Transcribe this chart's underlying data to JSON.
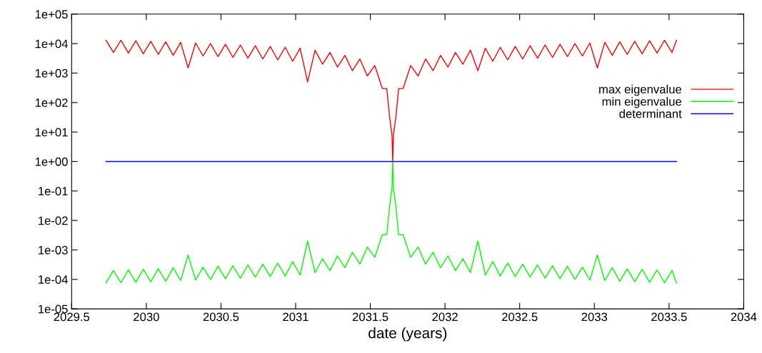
{
  "chart_data": {
    "type": "line",
    "xlabel": "date (years)",
    "xlim": [
      2029.5,
      2034
    ],
    "xticks": [
      2029.5,
      2030,
      2030.5,
      2031,
      2031.5,
      2032,
      2032.5,
      2033,
      2033.5,
      2034
    ],
    "ylim": [
      1e-05,
      100000
    ],
    "log": "y",
    "yticks": [
      {
        "value": 1e-05,
        "label": "1e-05"
      },
      {
        "value": 0.0001,
        "label": "1e-04"
      },
      {
        "value": 0.001,
        "label": "1e-03"
      },
      {
        "value": 0.01,
        "label": "1e-02"
      },
      {
        "value": 0.1,
        "label": "1e-01"
      },
      {
        "value": 1,
        "label": "1e+00"
      },
      {
        "value": 10,
        "label": "1e+01"
      },
      {
        "value": 100,
        "label": "1e+02"
      },
      {
        "value": 1000,
        "label": "1e+03"
      },
      {
        "value": 10000,
        "label": "1e+04"
      },
      {
        "value": 100000,
        "label": "1e+05"
      }
    ],
    "grid": false,
    "legend": "right",
    "marker": "none",
    "line_style": "solid",
    "series": [
      {
        "name": "max eigenvalue",
        "color": "#ff0000",
        "x": [
          2029.73,
          2029.78,
          2029.83,
          2029.88,
          2029.93,
          2029.98,
          2030.03,
          2030.08,
          2030.13,
          2030.18,
          2030.23,
          2030.28,
          2030.33,
          2030.38,
          2030.43,
          2030.48,
          2030.53,
          2030.58,
          2030.63,
          2030.68,
          2030.73,
          2030.78,
          2030.83,
          2030.88,
          2030.93,
          2030.98,
          2031.03,
          2031.08,
          2031.13,
          2031.18,
          2031.23,
          2031.28,
          2031.33,
          2031.38,
          2031.43,
          2031.48,
          2031.53,
          2031.58,
          2031.61,
          2031.63,
          2031.645,
          2031.65,
          2031.655,
          2031.67,
          2031.69,
          2031.72,
          2031.77,
          2031.82,
          2031.87,
          2031.92,
          2031.97,
          2032.02,
          2032.07,
          2032.12,
          2032.17,
          2032.22,
          2032.27,
          2032.32,
          2032.37,
          2032.42,
          2032.47,
          2032.52,
          2032.57,
          2032.62,
          2032.67,
          2032.72,
          2032.77,
          2032.82,
          2032.87,
          2032.92,
          2032.97,
          2033.02,
          2033.07,
          2033.12,
          2033.17,
          2033.22,
          2033.27,
          2033.32,
          2033.37,
          2033.42,
          2033.47,
          2033.52,
          2033.55
        ],
        "values": [
          13000,
          5000,
          13000,
          4800,
          12500,
          4500,
          12000,
          4300,
          11500,
          4000,
          11000,
          1500,
          10500,
          3800,
          10000,
          3600,
          9500,
          3400,
          9000,
          3200,
          8500,
          3000,
          8000,
          2800,
          7500,
          2500,
          7000,
          500,
          6000,
          2000,
          5000,
          1600,
          4000,
          1200,
          3000,
          800,
          1800,
          300,
          300,
          30,
          8,
          1,
          8,
          30,
          300,
          300,
          1800,
          800,
          3000,
          1200,
          4000,
          1600,
          5000,
          2000,
          6000,
          1200,
          7000,
          2500,
          7500,
          2800,
          8000,
          3000,
          8500,
          3200,
          9000,
          3400,
          9500,
          3600,
          10000,
          3800,
          10500,
          1500,
          11000,
          4000,
          11500,
          4300,
          12000,
          4500,
          12500,
          4800,
          13000,
          5000,
          13000
        ]
      },
      {
        "name": "min eigenvalue",
        "color": "#00ff00",
        "x": [
          2029.73,
          2029.78,
          2029.83,
          2029.88,
          2029.93,
          2029.98,
          2030.03,
          2030.08,
          2030.13,
          2030.18,
          2030.23,
          2030.28,
          2030.33,
          2030.38,
          2030.43,
          2030.48,
          2030.53,
          2030.58,
          2030.63,
          2030.68,
          2030.73,
          2030.78,
          2030.83,
          2030.88,
          2030.93,
          2030.98,
          2031.03,
          2031.08,
          2031.13,
          2031.18,
          2031.23,
          2031.28,
          2031.33,
          2031.38,
          2031.43,
          2031.48,
          2031.53,
          2031.58,
          2031.61,
          2031.63,
          2031.645,
          2031.65,
          2031.655,
          2031.67,
          2031.69,
          2031.72,
          2031.77,
          2031.82,
          2031.87,
          2031.92,
          2031.97,
          2032.02,
          2032.07,
          2032.12,
          2032.17,
          2032.22,
          2032.27,
          2032.32,
          2032.37,
          2032.42,
          2032.47,
          2032.52,
          2032.57,
          2032.62,
          2032.67,
          2032.72,
          2032.77,
          2032.82,
          2032.87,
          2032.92,
          2032.97,
          2033.02,
          2033.07,
          2033.12,
          2033.17,
          2033.22,
          2033.27,
          2033.32,
          2033.37,
          2033.42,
          2033.47,
          2033.52,
          2033.55
        ],
        "values": [
          7.7e-05,
          0.0002,
          7.7e-05,
          0.00021,
          8e-05,
          0.00022,
          8.3e-05,
          0.00023,
          8.7e-05,
          0.00025,
          9.1e-05,
          0.00067,
          9.5e-05,
          0.00026,
          0.0001,
          0.00028,
          0.000105,
          0.00029,
          0.00011,
          0.00031,
          0.00012,
          0.00033,
          0.000125,
          0.00036,
          0.00013,
          0.0004,
          0.00014,
          0.002,
          0.00017,
          0.0005,
          0.0002,
          0.00063,
          0.00025,
          0.00083,
          0.00033,
          0.00125,
          0.00056,
          0.0033,
          0.0033,
          0.033,
          0.125,
          1,
          0.125,
          0.033,
          0.0033,
          0.0033,
          0.00056,
          0.00125,
          0.00033,
          0.00083,
          0.00025,
          0.00063,
          0.0002,
          0.0005,
          0.00017,
          0.002,
          0.00014,
          0.0004,
          0.00013,
          0.00036,
          0.000125,
          0.00033,
          0.00012,
          0.00031,
          0.00011,
          0.00029,
          0.000105,
          0.00028,
          0.0001,
          0.00026,
          9.5e-05,
          0.00067,
          9.1e-05,
          0.00025,
          8.7e-05,
          0.00023,
          8.3e-05,
          0.00022,
          8e-05,
          0.00021,
          7.7e-05,
          0.0002,
          7.7e-05
        ]
      },
      {
        "name": "determinant",
        "color": "#0000ff",
        "x": [
          2029.73,
          2033.55
        ],
        "values": [
          1,
          1
        ]
      }
    ]
  }
}
